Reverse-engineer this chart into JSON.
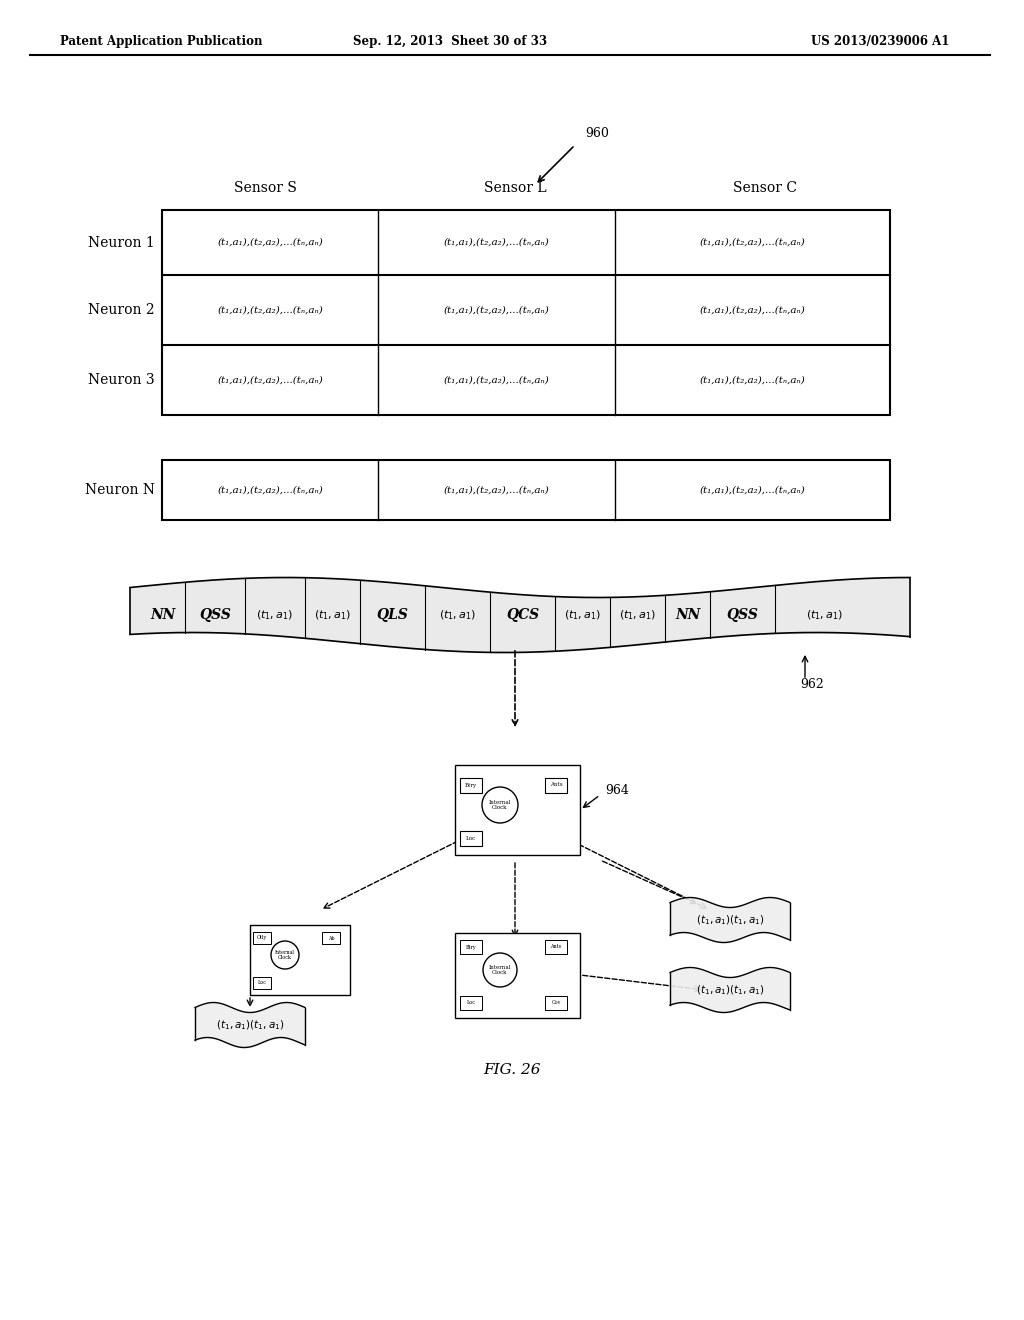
{
  "bg_color": "#ffffff",
  "header_left": "Patent Application Publication",
  "header_mid": "Sep. 12, 2013  Sheet 30 of 33",
  "header_right": "US 2013/0239006 A1",
  "table_label_960": "960",
  "col_headers": [
    "Sensor S",
    "Sensor L",
    "Sensor C"
  ],
  "row_labels": [
    "Neuron 1",
    "Neuron 2",
    "Neuron 3"
  ],
  "row_label_n": "Neuron N",
  "cell_text": "(t₁,a₁),(t₂,a₂),...(tₙ,aₙ)",
  "label_962": "962",
  "label_964": "964",
  "fig_label": "FIG. 26",
  "ribbon_labels": [
    "NN",
    "QSS",
    "(t₁,a₁)",
    "(t₁,a₁",
    "QLS",
    "(t₁,a₁)",
    "QCS",
    "(t₁,a₁)",
    "(t₁,a₁",
    "NN",
    "QSS",
    "(t₁,a₁)"
  ],
  "output_labels": [
    "(t₁,a₁)(t₁,a₁)",
    "(t₁,a₁)(t₁,a₁)",
    "(t₁,a₁)(t₁,a₁)"
  ]
}
